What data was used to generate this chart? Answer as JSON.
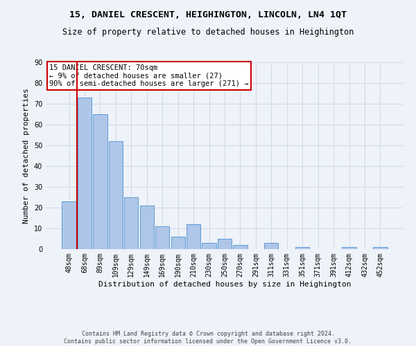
{
  "title": "15, DANIEL CRESCENT, HEIGHINGTON, LINCOLN, LN4 1QT",
  "subtitle": "Size of property relative to detached houses in Heighington",
  "xlabel": "Distribution of detached houses by size in Heighington",
  "ylabel": "Number of detached properties",
  "categories": [
    "48sqm",
    "68sqm",
    "89sqm",
    "109sqm",
    "129sqm",
    "149sqm",
    "169sqm",
    "190sqm",
    "210sqm",
    "230sqm",
    "250sqm",
    "270sqm",
    "291sqm",
    "311sqm",
    "331sqm",
    "351sqm",
    "371sqm",
    "391sqm",
    "412sqm",
    "432sqm",
    "452sqm"
  ],
  "values": [
    23,
    73,
    65,
    52,
    25,
    21,
    11,
    6,
    12,
    3,
    5,
    2,
    0,
    3,
    0,
    1,
    0,
    0,
    1,
    0,
    1
  ],
  "bar_color": "#aec6e8",
  "bar_edge_color": "#5b9bd5",
  "vline_x_idx": 0.5,
  "vline_color": "#cc0000",
  "annotation_text": "15 DANIEL CRESCENT: 70sqm\n← 9% of detached houses are smaller (27)\n90% of semi-detached houses are larger (271) →",
  "annotation_box_color": "#ffffff",
  "annotation_box_edge_color": "#cc0000",
  "ylim": [
    0,
    90
  ],
  "yticks": [
    0,
    10,
    20,
    30,
    40,
    50,
    60,
    70,
    80,
    90
  ],
  "grid_color": "#d0d8e8",
  "footer_line1": "Contains HM Land Registry data © Crown copyright and database right 2024.",
  "footer_line2": "Contains public sector information licensed under the Open Government Licence v3.0.",
  "bg_color": "#eef2f9",
  "title_fontsize": 9.5,
  "subtitle_fontsize": 8.5,
  "axis_label_fontsize": 8,
  "tick_fontsize": 7,
  "annotation_fontsize": 7.5,
  "footer_fontsize": 6
}
